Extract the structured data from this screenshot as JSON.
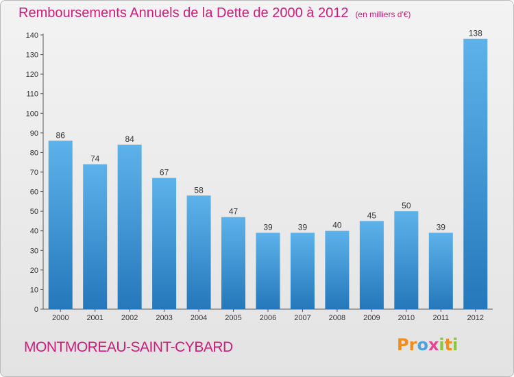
{
  "header": {
    "title": "Remboursements Annuels de la Dette de 2000 à 2012",
    "subtitle": "(en milliers d'€)"
  },
  "footer": {
    "commune": "MONTMOREAU-SAINT-CYBARD"
  },
  "logo": {
    "letters": [
      "P",
      "r",
      "o",
      "x",
      "i",
      "t",
      "i"
    ],
    "colors": [
      "#f28c1b",
      "#f28c1b",
      "#4aa3df",
      "#e84393",
      "#8cc63f",
      "#f28c1b",
      "#8cc63f"
    ]
  },
  "colors": {
    "bar_top": "#5eb2ea",
    "bar_bottom": "#2478bb",
    "text": "#333333",
    "accent": "#d21a7a"
  },
  "chart_data": {
    "type": "bar",
    "categories": [
      "2000",
      "2001",
      "2002",
      "2003",
      "2004",
      "2005",
      "2006",
      "2007",
      "2008",
      "2009",
      "2010",
      "2011",
      "2012"
    ],
    "values": [
      86,
      74,
      84,
      67,
      58,
      47,
      39,
      39,
      40,
      45,
      50,
      39,
      138
    ],
    "data_labels": [
      "86",
      "74",
      "84",
      "67",
      "58",
      "47",
      "39",
      "39",
      "40",
      "45",
      "50",
      "39",
      "138"
    ],
    "yticks": [
      "0",
      "10",
      "20",
      "30",
      "40",
      "50",
      "60",
      "70",
      "80",
      "90",
      "100",
      "110",
      "120",
      "130",
      "140"
    ],
    "ylim": [
      0,
      140
    ],
    "title": "Remboursements Annuels de la Dette de 2000 à 2012",
    "subtitle": "(en milliers d'€)",
    "grid": false,
    "legend": "none"
  }
}
